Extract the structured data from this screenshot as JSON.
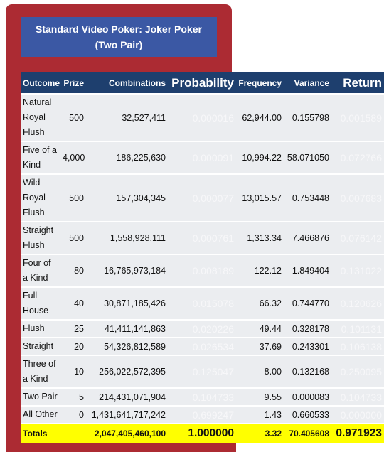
{
  "title": {
    "line1": "Standard Video Poker: Joker Poker",
    "line2": "(Two Pair)"
  },
  "colors": {
    "frame": "#ac2b33",
    "title_bg": "#3b58a4",
    "header_bg": "#1e3f6e",
    "row_bg": "#ebedf0",
    "totals_bg": "#ffff00"
  },
  "headers": {
    "outcome": "Outcome",
    "prize": "Prize",
    "combinations": "Combinations",
    "probability": "Probability",
    "frequency": "Frequency",
    "variance": "Variance",
    "return": "Return"
  },
  "rows": [
    {
      "outcome": "Natural Royal Flush",
      "prize": "500",
      "combinations": "32,527,411",
      "probability": "0.000016",
      "frequency": "62,944.00",
      "variance": "0.155798",
      "return": "0.001589"
    },
    {
      "outcome": "Five of a Kind",
      "prize": "4,000",
      "combinations": "186,225,630",
      "probability": "0.000091",
      "frequency": "10,994.22",
      "variance": "58.071050",
      "return": "0.072766"
    },
    {
      "outcome": "Wild Royal Flush",
      "prize": "500",
      "combinations": "157,304,345",
      "probability": "0.000077",
      "frequency": "13,015.57",
      "variance": "0.753448",
      "return": "0.007683"
    },
    {
      "outcome": "Straight Flush",
      "prize": "500",
      "combinations": "1,558,928,111",
      "probability": "0.000761",
      "frequency": "1,313.34",
      "variance": "7.466876",
      "return": "0.076142"
    },
    {
      "outcome": "Four of a Kind",
      "prize": "80",
      "combinations": "16,765,973,184",
      "probability": "0.008189",
      "frequency": "122.12",
      "variance": "1.849404",
      "return": "0.131022"
    },
    {
      "outcome": "Full House",
      "prize": "40",
      "combinations": "30,871,185,426",
      "probability": "0.015078",
      "frequency": "66.32",
      "variance": "0.744770",
      "return": "0.120626"
    },
    {
      "outcome": "Flush",
      "prize": "25",
      "combinations": "41,411,141,863",
      "probability": "0.020226",
      "frequency": "49.44",
      "variance": "0.328178",
      "return": "0.101131"
    },
    {
      "outcome": "Straight",
      "prize": "20",
      "combinations": "54,326,812,589",
      "probability": "0.026534",
      "frequency": "37.69",
      "variance": "0.243301",
      "return": "0.106138"
    },
    {
      "outcome": "Three of a Kind",
      "prize": "10",
      "combinations": "256,022,572,395",
      "probability": "0.125047",
      "frequency": "8.00",
      "variance": "0.132168",
      "return": "0.250095"
    },
    {
      "outcome": "Two Pair",
      "prize": "5",
      "combinations": "214,431,071,904",
      "probability": "0.104733",
      "frequency": "9.55",
      "variance": "0.000083",
      "return": "0.104733"
    },
    {
      "outcome": "All Other",
      "prize": "0",
      "combinations": "1,431,641,717,242",
      "probability": "0.699247",
      "frequency": "1.43",
      "variance": "0.660533",
      "return": "0.000000"
    }
  ],
  "totals": {
    "label": "Totals",
    "prize": "",
    "combinations": "2,047,405,460,100",
    "probability": "1.000000",
    "frequency": "3.32",
    "variance": "70.405608",
    "return": "0.971923"
  }
}
